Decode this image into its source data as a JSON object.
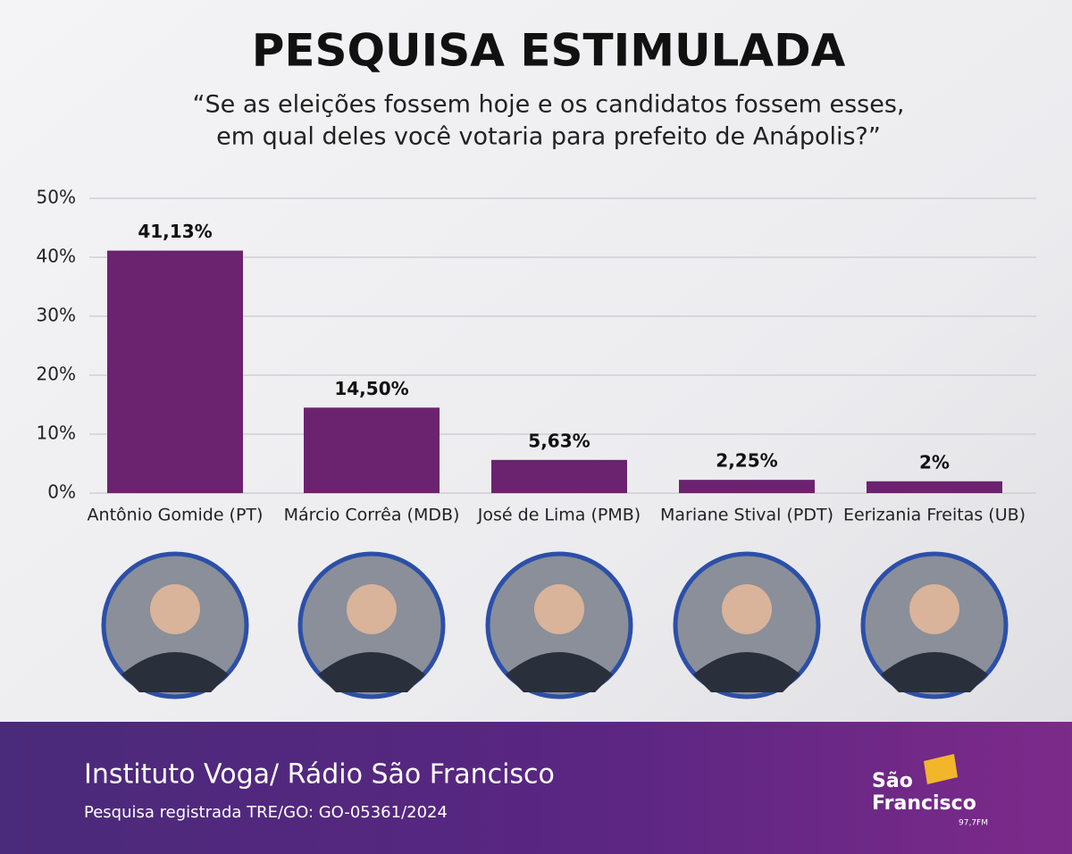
{
  "chart_data": {
    "type": "bar",
    "title": "PESQUISA ESTIMULADA",
    "subtitle": [
      "“Se as eleições fossem hoje e os candidatos fossem esses,",
      "em qual deles você votaria para prefeito de Anápolis?”"
    ],
    "categories": [
      "Antônio Gomide (PT)",
      "Márcio Corrêa (MDB)",
      "José de Lima (PMB)",
      "Mariane Stival (PDT)",
      "Eerizania Freitas (UB)"
    ],
    "values": [
      41.13,
      14.5,
      5.63,
      2.25,
      2
    ],
    "value_labels": [
      "41,13%",
      "14,50%",
      "5,63%",
      "2,25%",
      "2%"
    ],
    "color": "#6b2370",
    "ylim": [
      0,
      50
    ],
    "yticks": [
      {
        "value": 0,
        "label": "0%"
      },
      {
        "value": 10,
        "label": "10%"
      },
      {
        "value": 20,
        "label": "20%"
      },
      {
        "value": 30,
        "label": "30%"
      },
      {
        "value": 40,
        "label": "40%"
      },
      {
        "value": 50,
        "label": "50%"
      }
    ],
    "grid": true
  },
  "footer": {
    "source": "Instituto Voga/ Rádio São Francisco",
    "registration": "Pesquisa registrada TRE/GO: GO-05361/2024"
  },
  "logo": {
    "line1": "São",
    "line2": "Francisco",
    "frequency": "97,7FM"
  }
}
